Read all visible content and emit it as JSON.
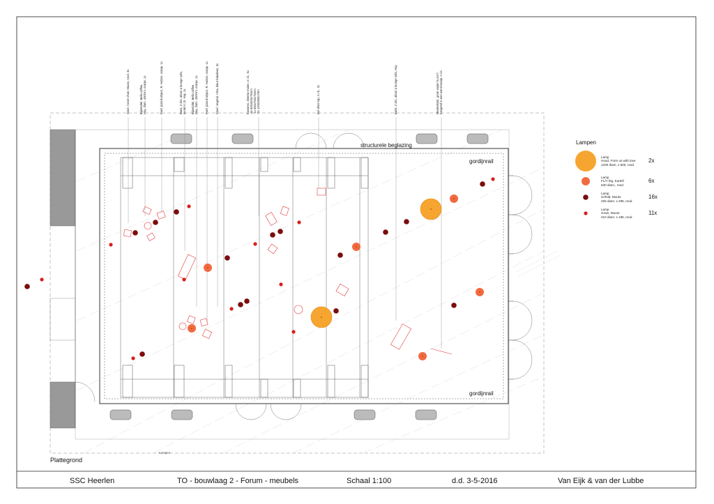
{
  "title_block": {
    "project": "SSC Heerlen",
    "drawing": "TO - bouwlaag 2  - Forum - meubels",
    "scale": "Schaal 1:100",
    "date": "d.d. 3-5-2016",
    "architect": "Van Eijk & van der Lubbe"
  },
  "plan": {
    "view_label": "Plattegrond",
    "glazing_label": "structurele beglazing",
    "rail_top": "gordijnrail",
    "rail_bottom": "gordijnrail",
    "small_label": "Lampen"
  },
  "callouts": [
    {
      "lines": [
        "Stoel, Cover chair, Muuto, rood, 3x"
      ]
    },
    {
      "lines": [
        "Bijzettafel, Bella coffee,",
        "Hay, diam. 450mm, oranje, 1x"
      ]
    },
    {
      "lines": [
        "Poef, pizzoli-object, R. Hutten, oranje, 1x"
      ]
    },
    {
      "lines": [
        "Bank, 2 zits, about a lounge sofa,",
        "textiel n.t.b. Hay, 1x"
      ]
    },
    {
      "lines": [
        "Bijzettafel, Bella coffee,",
        "Hay, diam. 450mm, oranje, 1x"
      ]
    },
    {
      "lines": [
        "Poef, pizzoli-object, R. Hutten, oranje, 1x"
      ]
    },
    {
      "lines": [
        "Stoel, Vegetal, Vitra, kleur bakoleen, 3x"
      ]
    },
    {
      "lines": [
        "Kussens, diverse maten, n.t.b., 6x",
        "-3x 500x500x75mm",
        "-1x 500x750x75mm",
        "-2x 1200x800x75m"
      ]
    },
    {
      "lines": [
        "Bol vilten lap, n.t.b., 2x"
      ]
    },
    {
      "lines": [
        "Bank, 2 zits, about a lounge sofa, Hay"
      ]
    },
    {
      "lines": [
        "Meubelstuk, grote vazen h=1m?",
        "hangend in een wand kastje, n.t.b."
      ]
    }
  ],
  "legend": {
    "title": "Lampen",
    "items": [
      {
        "lines": [
          "Lamp",
          "Hood, Form us with love",
          "1200 diam. x 600, rood"
        ],
        "count": "2x",
        "color": "#f7a531"
      },
      {
        "lines": [
          "Lamp",
          "FL/Y big, Kartell",
          "530 diam., rood"
        ],
        "count": "6x",
        "color": "#f26a3f"
      },
      {
        "lines": [
          "Lamp",
          "Unfold, Muuto",
          "325 diam. x 295, rood"
        ],
        "count": "16x",
        "color": "#7a0d0d"
      },
      {
        "lines": [
          "Lamp",
          "Grain, Muuto",
          "210 diam. x 185, rood"
        ],
        "count": "11x",
        "color": "#d81e1e"
      }
    ]
  },
  "colors": {
    "hood": "#f7a531",
    "fly": "#f26a3f",
    "unfold": "#7a0d0d",
    "grain": "#d81e1e",
    "furniture": "#e23a3a",
    "wall": "#999999"
  },
  "lamps": {
    "hood": 2,
    "fly": 6,
    "unfold": 16,
    "grain": 11
  }
}
